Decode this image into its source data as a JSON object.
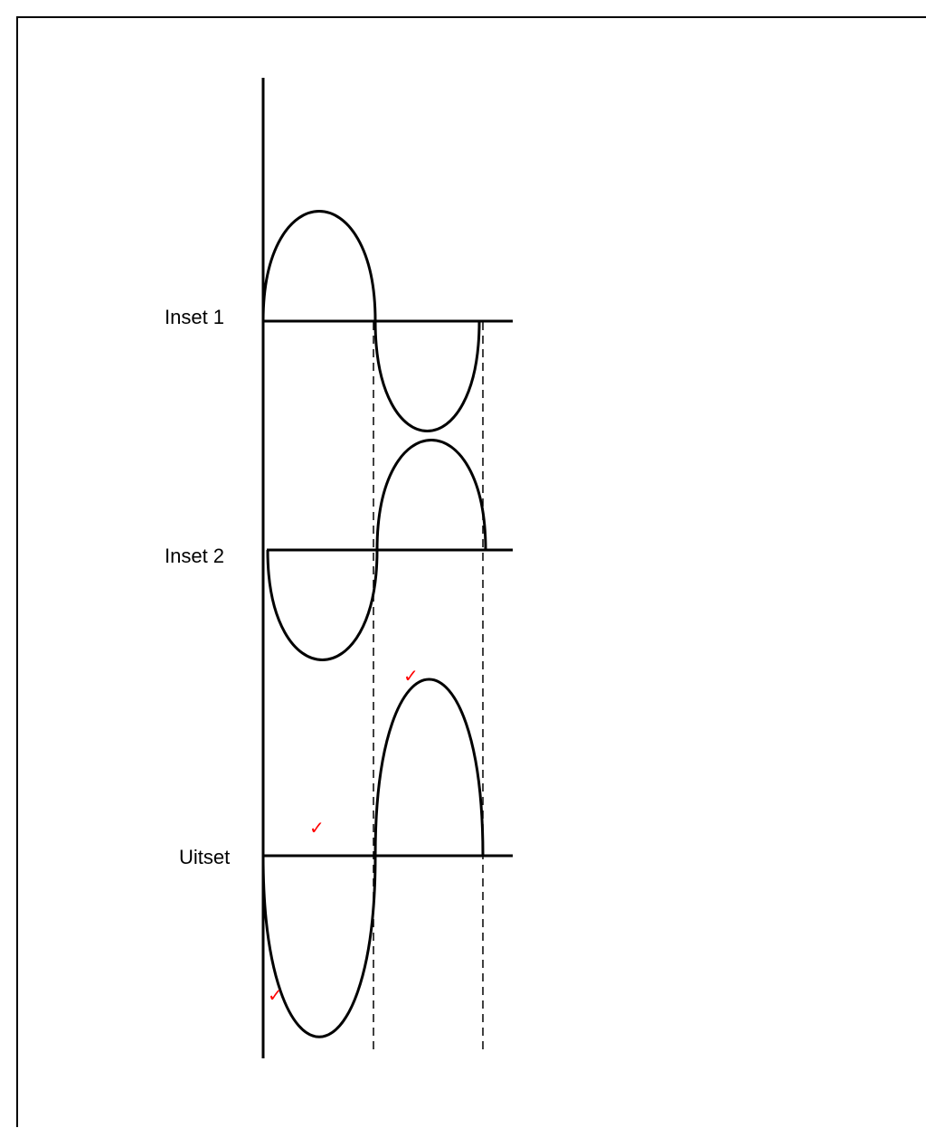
{
  "labels": {
    "inset1": "Inset 1",
    "inset2": "Inset 2",
    "uitset": "Uitset"
  },
  "check_mark": "✓",
  "colors": {
    "line": "#000000",
    "check": "#ff0000",
    "background": "#ffffff"
  }
}
